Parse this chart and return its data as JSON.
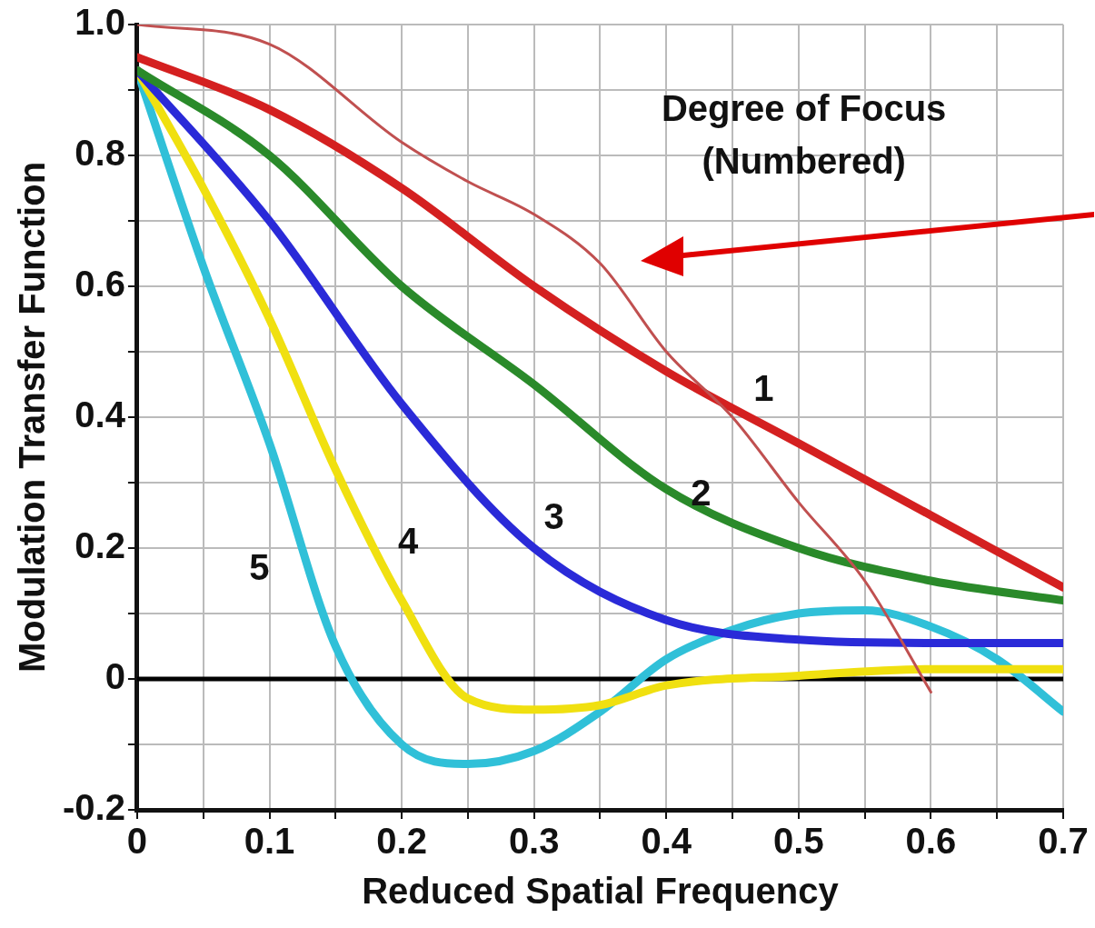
{
  "chart_data": {
    "type": "line",
    "title": "Degree of Focus\n(Numbered)",
    "xlabel": "Reduced Spatial Frequency",
    "ylabel": "Modulation Transfer Function",
    "xlim": [
      0,
      0.7
    ],
    "xticks": [
      0,
      {
        "value": 0.05,
        "label": null
      },
      0.1,
      {
        "value": 0.15,
        "label": null
      },
      0.2,
      {
        "value": 0.25,
        "label": null
      },
      0.3,
      {
        "value": 0.35,
        "label": null
      },
      0.4,
      {
        "value": 0.45,
        "label": null
      },
      0.5,
      {
        "value": 0.55,
        "label": null
      },
      0.6,
      {
        "value": 0.65,
        "label": null
      },
      0.7
    ],
    "ylim": [
      -0.2,
      1.0
    ],
    "yticks": [
      -0.2,
      {
        "value": -0.1,
        "label": null
      },
      0,
      {
        "value": 0.1,
        "label": null
      },
      0.2,
      {
        "value": 0.3,
        "label": null
      },
      0.4,
      {
        "value": 0.5,
        "label": null
      },
      0.6,
      {
        "value": 0.7,
        "label": null
      },
      0.8,
      {
        "value": 0.9,
        "label": null
      },
      {
        "value": 1.0,
        "label": "1.0"
      }
    ],
    "grid": true,
    "legend": false,
    "marker": "none",
    "line_style": "solid",
    "ref_lines": [
      {
        "axis": "y",
        "value": 0,
        "color": "#000000"
      }
    ],
    "series": [
      {
        "name": "1",
        "color": "#d42020",
        "x": [
          0,
          0.1,
          0.2,
          0.3,
          0.4,
          0.5,
          0.6,
          0.7
        ],
        "values": [
          0.95,
          0.87,
          0.75,
          0.6,
          0.47,
          0.36,
          0.25,
          0.14
        ]
      },
      {
        "name": "2",
        "color": "#2a8a2a",
        "x": [
          0,
          0.1,
          0.2,
          0.3,
          0.4,
          0.5,
          0.6,
          0.7
        ],
        "values": [
          0.93,
          0.8,
          0.6,
          0.45,
          0.29,
          0.2,
          0.15,
          0.12
        ]
      },
      {
        "name": "3",
        "color": "#2a2ad8",
        "x": [
          0,
          0.1,
          0.2,
          0.3,
          0.4,
          0.5,
          0.6,
          0.7
        ],
        "values": [
          0.93,
          0.7,
          0.42,
          0.2,
          0.09,
          0.06,
          0.055,
          0.055
        ]
      },
      {
        "name": "4",
        "color": "#f0e010",
        "x": [
          0,
          0.05,
          0.1,
          0.15,
          0.2,
          0.25,
          0.3,
          0.35,
          0.4,
          0.5,
          0.6,
          0.7
        ],
        "values": [
          0.93,
          0.75,
          0.55,
          0.32,
          0.12,
          -0.03,
          -0.047,
          -0.04,
          -0.01,
          0.005,
          0.015,
          0.015
        ]
      },
      {
        "name": "5",
        "color": "#30c0d8",
        "x": [
          0,
          0.05,
          0.1,
          0.15,
          0.2,
          0.25,
          0.3,
          0.35,
          0.4,
          0.45,
          0.5,
          0.55,
          0.6,
          0.65,
          0.7
        ],
        "values": [
          0.93,
          0.63,
          0.36,
          0.05,
          -0.1,
          -0.13,
          -0.11,
          -0.05,
          0.03,
          0.075,
          0.1,
          0.105,
          0.08,
          0.03,
          -0.05
        ]
      },
      {
        "color": "#c05050",
        "x": [
          0,
          0.1,
          0.2,
          0.25,
          0.3,
          0.35,
          0.4,
          0.45,
          0.5,
          0.55,
          0.6
        ],
        "values": [
          1.0,
          0.97,
          0.82,
          0.76,
          0.71,
          0.635,
          0.5,
          0.4,
          0.27,
          0.15,
          -0.02
        ]
      }
    ]
  }
}
